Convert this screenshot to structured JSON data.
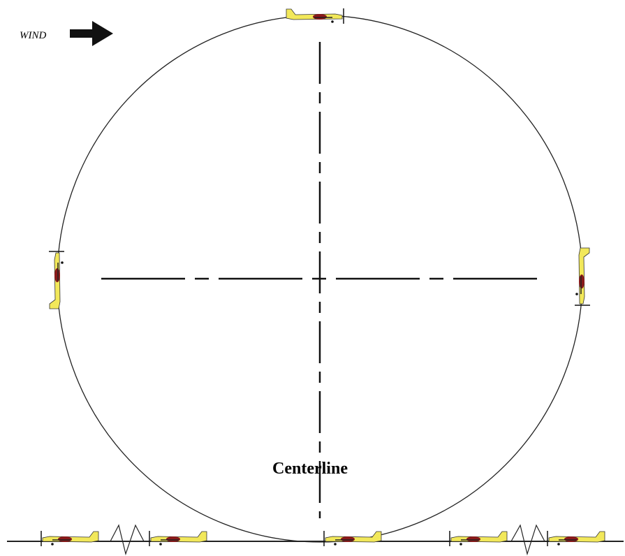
{
  "labels": {
    "wind": "WIND",
    "centerline": "Centerline"
  }
}
